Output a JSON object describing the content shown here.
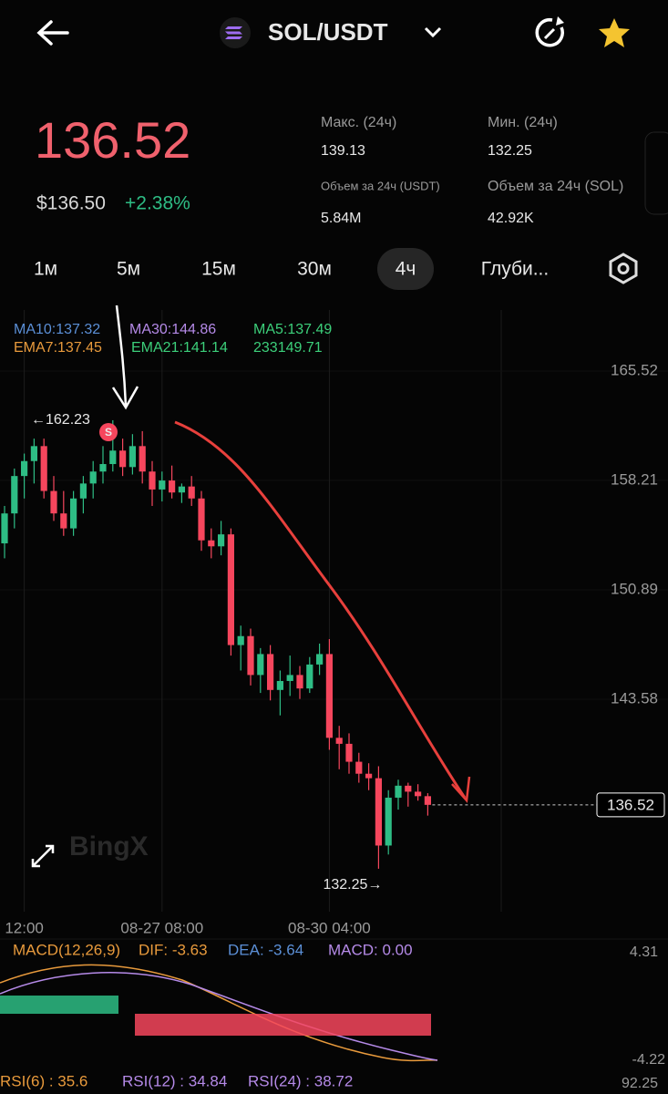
{
  "header": {
    "pair": "SOL/USDT"
  },
  "price": {
    "last": "136.52",
    "usd": "$136.50",
    "change": "+2.38%"
  },
  "stats": [
    {
      "label": "Макс. (24ч)",
      "value": "139.13"
    },
    {
      "label": "Мин. (24ч)",
      "value": "132.25"
    },
    {
      "label": "Объем за 24ч (USDT)",
      "value": "5.84M"
    },
    {
      "label": "Объем за 24ч (SOL)",
      "value": "42.92K"
    }
  ],
  "timeframes": [
    "1м",
    "5м",
    "15м",
    "30м",
    "4ч",
    "Глуби..."
  ],
  "active_timeframe": 4,
  "indicators": [
    {
      "text": "MA10:137.32",
      "color": "#5b8fd6"
    },
    {
      "text": "MA30:144.86",
      "color": "#b58ae8"
    },
    {
      "text": "MA5:137.49",
      "color": "#3ccf7a"
    },
    {
      "text": "EMA7:137.45",
      "color": "#e89a3c"
    },
    {
      "text": "EMA21:141.14",
      "color": "#3ccf7a"
    },
    {
      "text": "233149.71",
      "color": "#3ccf7a"
    }
  ],
  "chart_data": {
    "type": "candlestick",
    "categories": [
      null,
      null,
      "12:00",
      null,
      null,
      null,
      null,
      null,
      null,
      null,
      null,
      null,
      null,
      null,
      null,
      null,
      "08-27 08:00",
      null,
      null,
      null,
      null,
      null,
      null,
      null,
      null,
      null,
      null,
      null,
      null,
      null,
      null,
      null,
      null,
      "08-30 04:00",
      null,
      null,
      null,
      null,
      null,
      null,
      null,
      null,
      null,
      null
    ],
    "open": [
      154,
      156,
      158.5,
      159.5,
      160.5,
      157.5,
      156,
      155,
      157,
      158,
      158.8,
      159.3,
      160.2,
      159.1,
      160.5,
      158.8,
      157.6,
      158.2,
      157.4,
      157.8,
      157,
      154.2,
      153.8,
      154.6,
      147.2,
      147.8,
      145.2,
      146.6,
      144.2,
      144.8,
      145.2,
      144.3,
      145.9,
      146.6,
      141,
      140.6,
      139.4,
      138.6,
      138.3,
      133.8,
      137,
      137.8,
      137.4,
      137.1
    ],
    "high": [
      156.5,
      159,
      160,
      161,
      161,
      158.5,
      157.5,
      157.5,
      158.5,
      159.5,
      160.5,
      162.23,
      161,
      161.3,
      161.5,
      159.5,
      158.8,
      159.2,
      158,
      158.5,
      157.5,
      155,
      155.5,
      155,
      148.5,
      148.3,
      147,
      147.2,
      145.5,
      146.5,
      145.8,
      146.4,
      147.3,
      147.6,
      141.8,
      141.3,
      140,
      139.3,
      139.1,
      137.5,
      138.2,
      138,
      137.9,
      137.3
    ],
    "low": [
      153,
      155,
      157,
      158,
      157,
      155.5,
      154.5,
      154.5,
      156,
      157,
      158,
      158.8,
      158.5,
      158.6,
      158,
      156.5,
      156.8,
      157,
      156.7,
      156.5,
      153.5,
      153,
      153.2,
      146.5,
      145.5,
      144.5,
      144,
      143.5,
      142.5,
      143.8,
      143.6,
      144,
      145.2,
      140.2,
      138.9,
      138.6,
      138,
      137.5,
      132.25,
      133.2,
      136.2,
      136.4,
      136.8,
      135.8
    ],
    "close": [
      156,
      158.5,
      159.5,
      160.5,
      157.5,
      156,
      155,
      157,
      158,
      158.8,
      159.3,
      160.2,
      159.1,
      160.5,
      158.8,
      157.6,
      158.2,
      157.4,
      157.8,
      157,
      154.2,
      153.8,
      154.6,
      147.2,
      147.8,
      145.2,
      146.6,
      144.2,
      144.8,
      145.2,
      144.3,
      145.9,
      146.6,
      141,
      140.6,
      139.4,
      138.6,
      138.3,
      133.8,
      137,
      137.8,
      137.4,
      137.1,
      136.52
    ],
    "up_color": "#2ebd85",
    "down_color": "#f6465d",
    "ylim": [
      129.38,
      169.6
    ],
    "yticks": [
      165.52,
      158.21,
      150.89,
      143.58
    ],
    "last_price": 136.52,
    "high_label": {
      "value": 162.23,
      "label": "←162.23"
    },
    "low_label": {
      "value": 132.25,
      "label": "132.25→"
    },
    "watermark": "BingX"
  },
  "macd": {
    "title": "MACD(12,26,9)",
    "dif": "DIF: -3.63",
    "dea": "DEA: -3.64",
    "macd": "MACD: 0.00",
    "axis_top": "4.31",
    "axis_bottom": "-4.22"
  },
  "rsi": {
    "rsi6": "RSI(6) : 35.6",
    "rsi12": "RSI(12) : 34.84",
    "rsi24": "RSI(24) : 38.72",
    "axis_top": "92.25"
  }
}
